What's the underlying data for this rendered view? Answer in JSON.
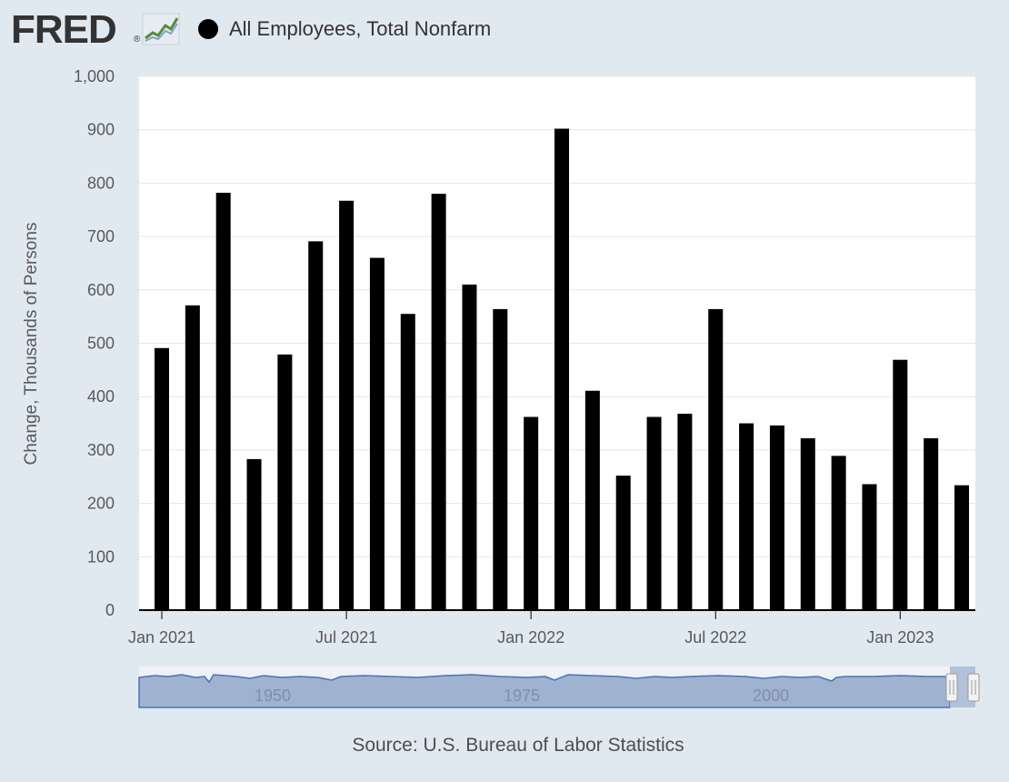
{
  "header": {
    "logo": "FRED",
    "logo_mark": "®",
    "logo_icon": "line-chart-icon",
    "series_title": "All Employees, Total Nonfarm"
  },
  "colors": {
    "background": "#e1e9f0",
    "plot_background": "#ffffff",
    "bar": "#000000",
    "navigator_fill": "#9fb2cf",
    "navigator_line": "#4a72b8"
  },
  "chart_data": {
    "type": "bar",
    "ylabel": "Change, Thousands of Persons",
    "xlabel": "",
    "ylim": [
      0,
      1000
    ],
    "yticks": [
      0,
      100,
      200,
      300,
      400,
      500,
      600,
      700,
      800,
      900,
      1000
    ],
    "ytick_labels": [
      "0",
      "100",
      "200",
      "300",
      "400",
      "500",
      "600",
      "700",
      "800",
      "900",
      "1,000"
    ],
    "xtick_labels": [
      "Jan 2021",
      "Jul 2021",
      "Jan 2022",
      "Jul 2022",
      "Jan 2023"
    ],
    "xtick_months": [
      "2021-01",
      "2021-07",
      "2022-01",
      "2022-07",
      "2023-01"
    ],
    "grid": true,
    "categories": [
      "2021-01",
      "2021-02",
      "2021-03",
      "2021-04",
      "2021-05",
      "2021-06",
      "2021-07",
      "2021-08",
      "2021-09",
      "2021-10",
      "2021-11",
      "2021-12",
      "2022-01",
      "2022-02",
      "2022-03",
      "2022-04",
      "2022-05",
      "2022-06",
      "2022-07",
      "2022-08",
      "2022-09",
      "2022-10",
      "2022-11",
      "2022-12",
      "2023-01",
      "2023-02",
      "2023-03"
    ],
    "values": [
      491,
      571,
      782,
      283,
      479,
      691,
      767,
      660,
      555,
      780,
      610,
      564,
      362,
      902,
      411,
      252,
      362,
      368,
      564,
      350,
      346,
      322,
      289,
      236,
      469,
      322,
      234
    ]
  },
  "navigator": {
    "labels": [
      "1950",
      "1975",
      "2000"
    ]
  },
  "source": "Source: U.S. Bureau of Labor Statistics"
}
